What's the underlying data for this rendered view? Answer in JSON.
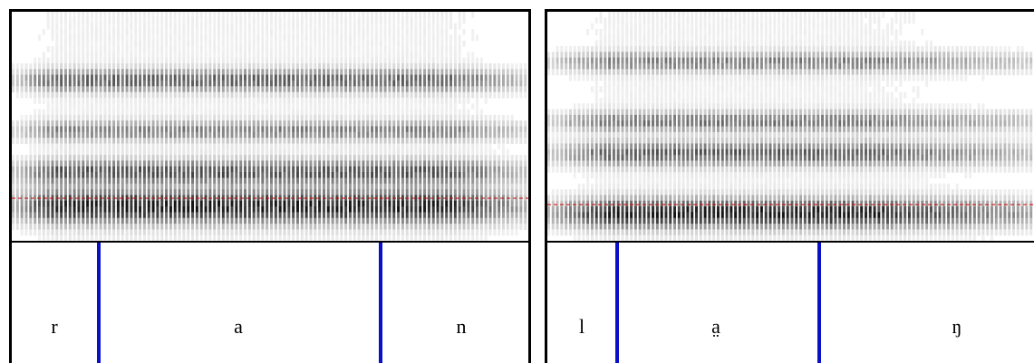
{
  "panels": [
    {
      "id": "left",
      "segments": [
        "r",
        "a",
        "n"
      ],
      "stripe_count": 118,
      "formants": [
        {
          "y": 0.85,
          "strength": 1.0,
          "thickness": 0.07
        },
        {
          "y": 0.7,
          "strength": 0.75,
          "thickness": 0.05
        },
        {
          "y": 0.52,
          "strength": 0.55,
          "thickness": 0.04
        },
        {
          "y": 0.3,
          "strength": 0.7,
          "thickness": 0.045
        }
      ],
      "colors": {
        "dashed_line": "#cc0000",
        "boundary": "#0a10c8"
      }
    },
    {
      "id": "right",
      "segments": [
        "l",
        "a̤",
        "ŋ"
      ],
      "stripe_count": 112,
      "formants": [
        {
          "y": 0.88,
          "strength": 1.0,
          "thickness": 0.06
        },
        {
          "y": 0.62,
          "strength": 0.7,
          "thickness": 0.05
        },
        {
          "y": 0.48,
          "strength": 0.6,
          "thickness": 0.04
        },
        {
          "y": 0.22,
          "strength": 0.55,
          "thickness": 0.04
        }
      ],
      "colors": {
        "dashed_line": "#cc0000",
        "boundary": "#0a10c8"
      }
    }
  ]
}
